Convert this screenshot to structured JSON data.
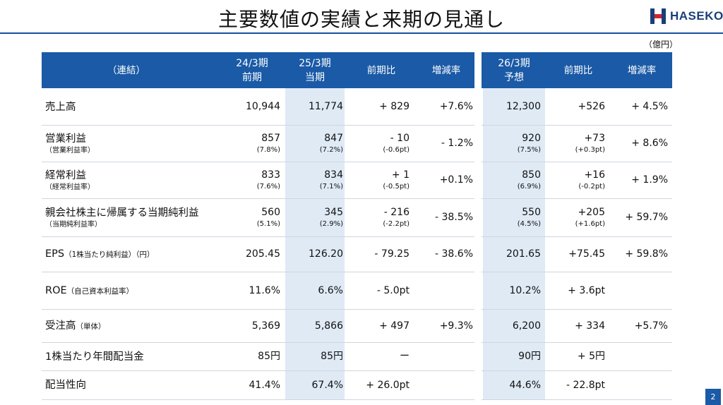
{
  "title": "主要数値の実績と来期の見通し",
  "logo_text": "HASEKO",
  "unit": "（億円）",
  "page_number": "2",
  "colors": {
    "header": "#1a5aa6",
    "shade": "#dfeaf5",
    "rule": "#1a4f9e"
  },
  "headers": {
    "label": "（連結）",
    "prev": [
      "24/3期",
      "前期"
    ],
    "curr": [
      "25/3期",
      "当期"
    ],
    "yoy": "前期比",
    "rate": "増減率",
    "fcst": [
      "26/3期",
      "予想"
    ],
    "fyoy": "前期比",
    "frate": "増減率"
  },
  "rows": [
    {
      "label": "売上高",
      "label_small": "",
      "label_sub": "",
      "prev": "10,944",
      "prev_sub": "",
      "curr": "11,774",
      "curr_sub": "",
      "yoy": "+ 829",
      "yoy_sub": "",
      "rate": "+7.6%",
      "fcst": "12,300",
      "fcst_sub": "",
      "fyoy": "+526",
      "fyoy_sub": "",
      "frate": "+ 4.5%"
    },
    {
      "label": "営業利益",
      "label_small": "",
      "label_sub": "（営業利益率）",
      "prev": "857",
      "prev_sub": "(7.8%)",
      "curr": "847",
      "curr_sub": "(7.2%)",
      "yoy": "- 10",
      "yoy_sub": "(-0.6pt)",
      "rate": "- 1.2%",
      "fcst": "920",
      "fcst_sub": "(7.5%)",
      "fyoy": "+73",
      "fyoy_sub": "(+0.3pt)",
      "frate": "+ 8.6%"
    },
    {
      "label": "経常利益",
      "label_small": "",
      "label_sub": "（経常利益率）",
      "prev": "833",
      "prev_sub": "(7.6%)",
      "curr": "834",
      "curr_sub": "(7.1%)",
      "yoy": "+ 1",
      "yoy_sub": "(-0.5pt)",
      "rate": "+0.1%",
      "fcst": "850",
      "fcst_sub": "(6.9%)",
      "fyoy": "+16",
      "fyoy_sub": "(-0.2pt)",
      "frate": "+ 1.9%"
    },
    {
      "label": "親会社株主に帰属する当期純利益",
      "label_small": "",
      "label_sub": "（当期純利益率）",
      "prev": "560",
      "prev_sub": "(5.1%)",
      "curr": "345",
      "curr_sub": "(2.9%)",
      "yoy": "- 216",
      "yoy_sub": "(-2.2pt)",
      "rate": "- 38.5%",
      "fcst": "550",
      "fcst_sub": "(4.5%)",
      "fyoy": "+205",
      "fyoy_sub": "(+1.6pt)",
      "frate": "+ 59.7%"
    },
    {
      "label": "EPS",
      "label_small": "（1株当たり純利益）（円）",
      "label_sub": "",
      "prev": "205.45",
      "prev_sub": "",
      "curr": "126.20",
      "curr_sub": "",
      "yoy": "- 79.25",
      "yoy_sub": "",
      "rate": "- 38.6%",
      "fcst": "201.65",
      "fcst_sub": "",
      "fyoy": "+75.45",
      "fyoy_sub": "",
      "frate": "+ 59.8%"
    },
    {
      "label": "ROE",
      "label_small": "（自己資本利益率）",
      "label_sub": "",
      "prev": "11.6%",
      "prev_sub": "",
      "curr": "6.6%",
      "curr_sub": "",
      "yoy": "- 5.0pt",
      "yoy_sub": "",
      "rate": "",
      "fcst": "10.2%",
      "fcst_sub": "",
      "fyoy": "+ 3.6pt",
      "fyoy_sub": "",
      "frate": ""
    },
    {
      "label": "受注高",
      "label_small": "（単体）",
      "label_sub": "",
      "prev": "5,369",
      "prev_sub": "",
      "curr": "5,866",
      "curr_sub": "",
      "yoy": "+ 497",
      "yoy_sub": "",
      "rate": "+9.3%",
      "fcst": "6,200",
      "fcst_sub": "",
      "fyoy": "+ 334",
      "fyoy_sub": "",
      "frate": "+5.7%"
    },
    {
      "label": "1株当たり年間配当金",
      "label_small": "",
      "label_sub": "",
      "prev": "85円",
      "prev_sub": "",
      "curr": "85円",
      "curr_sub": "",
      "yoy": "ー",
      "yoy_sub": "",
      "rate": "",
      "fcst": "90円",
      "fcst_sub": "",
      "fyoy": "+ 5円",
      "fyoy_sub": "",
      "frate": ""
    },
    {
      "label": "配当性向",
      "label_small": "",
      "label_sub": "",
      "prev": "41.4%",
      "prev_sub": "",
      "curr": "67.4%",
      "curr_sub": "",
      "yoy": "+ 26.0pt",
      "yoy_sub": "",
      "rate": "",
      "fcst": "44.6%",
      "fcst_sub": "",
      "fyoy": "- 22.8pt",
      "fyoy_sub": "",
      "frate": ""
    }
  ]
}
